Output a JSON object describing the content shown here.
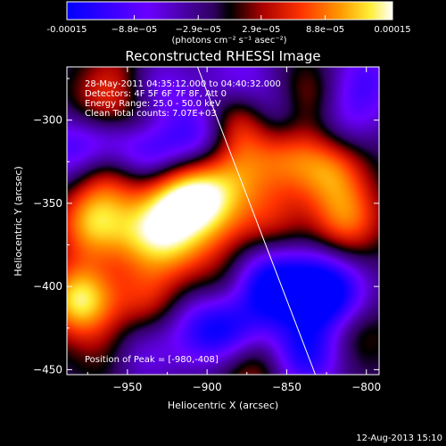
{
  "colorbar": {
    "ticks": [
      "-0.00015",
      "−8.8e−05",
      "−2.9e−05",
      "2.9e−05",
      "8.8e−05",
      "0.00015"
    ],
    "tick_values": [
      -0.00015,
      -8.8e-05,
      -2.9e-05,
      2.9e-05,
      8.8e-05,
      0.00015
    ],
    "unit_label": "(photons cm⁻² s⁻¹ asec⁻²)"
  },
  "plot": {
    "title": "Reconstructed RHESSI Image",
    "info_lines": [
      "28-May-2011 04:35:12.000 to 04:40:32.000",
      "Detectors: 4F 5F 6F 7F 8F, Att 0",
      "Energy Range: 25.0 - 50.0 keV",
      "Clean     Total counts: 7.07E+03"
    ],
    "peak_label": "Position of Peak = [-980,-408]",
    "footer_date": "12-Aug-2013 15:10"
  },
  "chart_data": {
    "type": "heatmap",
    "title": "Reconstructed RHESSI Image",
    "xlabel": "Heliocentric X (arcsec)",
    "ylabel": "Heliocentric Y (arcsec)",
    "xlim": [
      -988,
      -792
    ],
    "ylim": [
      -453,
      -268
    ],
    "xticks": [
      -950,
      -900,
      -850,
      -800
    ],
    "yticks": [
      -300,
      -350,
      -400,
      -450
    ],
    "xtick_labels": [
      "−950",
      "−900",
      "−850",
      "−800"
    ],
    "ytick_labels": [
      "−300",
      "−350",
      "−400",
      "−450"
    ],
    "colormap": "red-temperature (blue-purple-black-red-orange-yellow-white)",
    "value_range": [
      -0.00015,
      0.00015
    ],
    "peak_position": [
      -980,
      -408
    ],
    "limb_line": [
      [
        -906,
        -268
      ],
      [
        -832,
        -453
      ]
    ],
    "blobs": [
      {
        "x": -980,
        "y": -408,
        "value": 0.00015
      },
      {
        "x": -972,
        "y": -362,
        "value": 0.00012
      },
      {
        "x": -962,
        "y": -332,
        "value": 9e-05
      },
      {
        "x": -965,
        "y": -295,
        "value": 0.0001
      },
      {
        "x": -942,
        "y": -300,
        "value": 8e-05
      },
      {
        "x": -925,
        "y": -345,
        "value": 0.00011
      },
      {
        "x": -905,
        "y": -340,
        "value": 0.0001
      },
      {
        "x": -940,
        "y": -370,
        "value": 9e-05
      },
      {
        "x": -918,
        "y": -375,
        "value": 8e-05
      },
      {
        "x": -938,
        "y": -408,
        "value": 7e-05
      },
      {
        "x": -958,
        "y": -440,
        "value": 6e-05
      },
      {
        "x": -880,
        "y": -300,
        "value": 0.00011
      },
      {
        "x": -880,
        "y": -332,
        "value": 7e-05
      },
      {
        "x": -895,
        "y": -360,
        "value": 7e-05
      },
      {
        "x": -850,
        "y": -320,
        "value": 9e-05
      },
      {
        "x": -822,
        "y": -330,
        "value": 0.0001
      },
      {
        "x": -812,
        "y": -360,
        "value": 0.0001
      },
      {
        "x": -860,
        "y": -360,
        "value": 6e-05
      },
      {
        "x": -838,
        "y": -288,
        "value": 8e-05
      },
      {
        "x": -885,
        "y": -404,
        "value": 6e-05
      },
      {
        "x": -872,
        "y": -447,
        "value": 7e-05
      },
      {
        "x": -808,
        "y": -425,
        "value": 6e-05
      },
      {
        "x": -952,
        "y": -270,
        "value": 5e-05
      },
      {
        "x": -985,
        "y": -318,
        "value": -8e-05
      },
      {
        "x": -960,
        "y": -310,
        "value": -0.00012
      },
      {
        "x": -935,
        "y": -322,
        "value": -0.00011
      },
      {
        "x": -905,
        "y": -310,
        "value": -0.0001
      },
      {
        "x": -935,
        "y": -282,
        "value": -9e-05
      },
      {
        "x": -880,
        "y": -277,
        "value": -7e-05
      },
      {
        "x": -855,
        "y": -298,
        "value": -9e-05
      },
      {
        "x": -862,
        "y": -400,
        "value": -0.00015
      },
      {
        "x": -832,
        "y": -402,
        "value": -0.00013
      },
      {
        "x": -885,
        "y": -425,
        "value": -0.00011
      },
      {
        "x": -838,
        "y": -440,
        "value": -0.00012
      },
      {
        "x": -815,
        "y": -408,
        "value": -8e-05
      },
      {
        "x": -815,
        "y": -300,
        "value": -6e-05
      },
      {
        "x": -945,
        "y": -440,
        "value": -8e-05
      },
      {
        "x": -905,
        "y": -425,
        "value": -7e-05
      },
      {
        "x": -800,
        "y": -275,
        "value": -7e-05
      }
    ]
  }
}
